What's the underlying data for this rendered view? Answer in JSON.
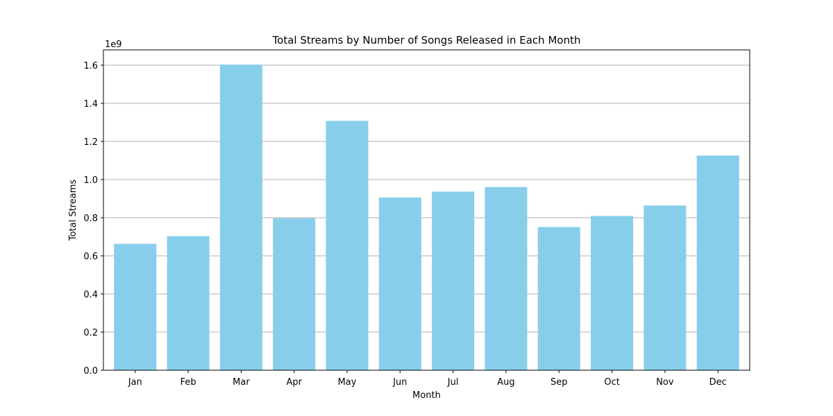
{
  "chart_data": {
    "type": "bar",
    "title": "Total Streams by Number of Songs Released in Each Month",
    "xlabel": "Month",
    "ylabel": "Total Streams",
    "y_scale_multiplier": "1e9",
    "categories": [
      "Jan",
      "Feb",
      "Mar",
      "Apr",
      "May",
      "Jun",
      "Jul",
      "Aug",
      "Sep",
      "Oct",
      "Nov",
      "Dec"
    ],
    "values": [
      0.663,
      0.703,
      1.603,
      0.797,
      1.308,
      0.906,
      0.937,
      0.961,
      0.751,
      0.809,
      0.864,
      1.126
    ],
    "ylim": [
      0,
      1.68
    ],
    "yticks": [
      "0.0",
      "0.2",
      "0.4",
      "0.6",
      "0.8",
      "1.0",
      "1.2",
      "1.4",
      "1.6"
    ],
    "grid": "y",
    "bar_color": "#87CEEB"
  }
}
